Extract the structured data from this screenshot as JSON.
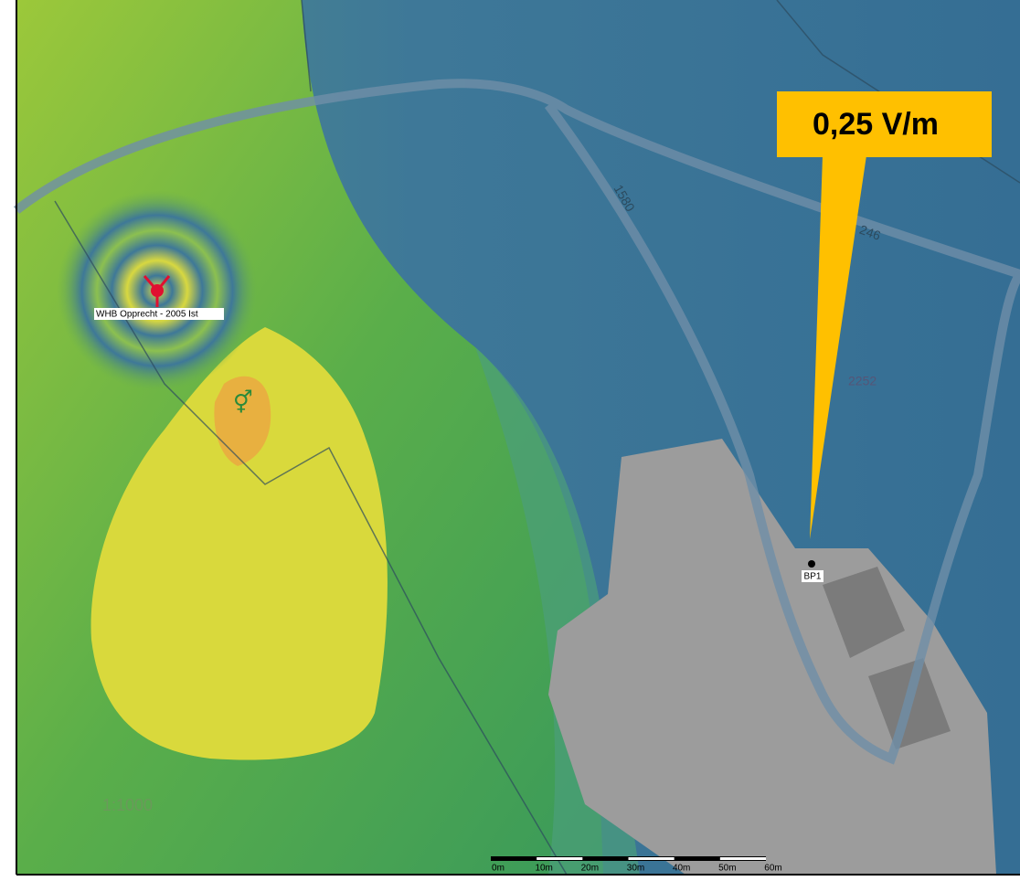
{
  "callout": {
    "label": "0,25 V/m"
  },
  "parcels": [
    "1580",
    "246",
    "2252"
  ],
  "antenna": {
    "label": "WHB Opprecht - 2005 Ist"
  },
  "point": {
    "label": "BP1"
  },
  "scale_ratio": "1:1000",
  "scale_bar": [
    "0m",
    "10m",
    "20m",
    "30m",
    "40m",
    "50m",
    "60m"
  ]
}
